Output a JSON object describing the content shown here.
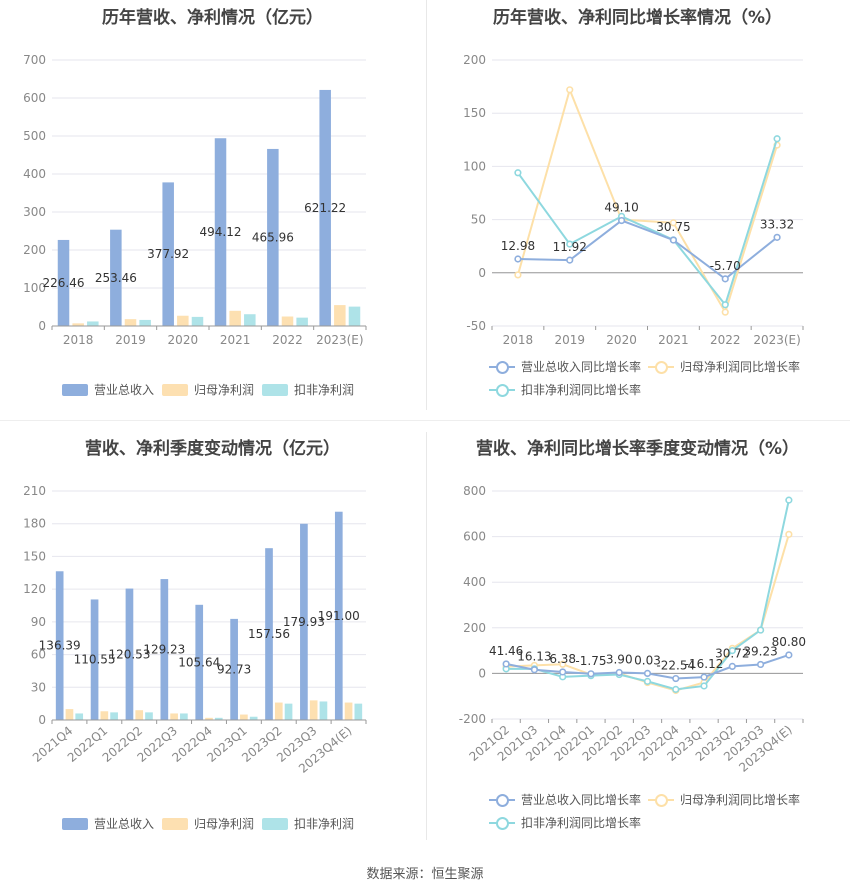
{
  "source": "数据来源：恒生聚源",
  "chart_data": [
    {
      "id": "annual-bar",
      "type": "bar",
      "title": "历年营收、净利情况（亿元）",
      "categories": [
        "2018",
        "2019",
        "2020",
        "2021",
        "2022",
        "2023(E)"
      ],
      "ylim": [
        0,
        700
      ],
      "yticks": [
        0,
        100,
        200,
        300,
        400,
        500,
        600,
        700
      ],
      "grid": true,
      "legend_position": "bottom",
      "colors": [
        "#8eaedd",
        "#fde0b1",
        "#aee3e8"
      ],
      "series": [
        {
          "name": "营业总收入",
          "values": [
            226.46,
            253.46,
            377.92,
            494.12,
            465.96,
            621.22
          ],
          "labels": [
            "226.46",
            "253.46",
            "377.92",
            "494.12",
            "465.96",
            "621.22"
          ]
        },
        {
          "name": "归母净利润",
          "values": [
            7,
            18,
            27,
            40,
            25,
            55
          ]
        },
        {
          "name": "扣非净利润",
          "values": [
            12,
            16,
            24,
            31,
            22,
            51
          ]
        }
      ]
    },
    {
      "id": "annual-line",
      "type": "line",
      "title": "历年营收、净利同比增长率情况（%）",
      "categories": [
        "2018",
        "2019",
        "2020",
        "2021",
        "2022",
        "2023(E)"
      ],
      "ylim": [
        -50,
        200
      ],
      "yticks": [
        -50,
        0,
        50,
        100,
        150,
        200
      ],
      "grid": true,
      "legend_position": "bottom",
      "colors": [
        "#8eaedd",
        "#fde0a8",
        "#8ed8df"
      ],
      "series": [
        {
          "name": "营业总收入同比增长率",
          "values": [
            12.98,
            11.92,
            49.1,
            30.75,
            -5.7,
            33.32
          ],
          "labels": [
            "12.98",
            "11.92",
            "49.10",
            "30.75",
            "-5.70",
            "33.32"
          ]
        },
        {
          "name": "归母净利润同比增长率",
          "values": [
            -2,
            172,
            50,
            47,
            -37,
            120
          ]
        },
        {
          "name": "扣非净利润同比增长率",
          "values": [
            94,
            27,
            53,
            31,
            -30,
            126
          ]
        }
      ]
    },
    {
      "id": "quarter-bar",
      "type": "bar",
      "title": "营收、净利季度变动情况（亿元）",
      "categories": [
        "2021Q4",
        "2022Q1",
        "2022Q2",
        "2022Q3",
        "2022Q4",
        "2023Q1",
        "2023Q2",
        "2023Q3",
        "2023Q4(E)"
      ],
      "ylim": [
        0,
        210
      ],
      "yticks": [
        0,
        30,
        60,
        90,
        120,
        150,
        180,
        210
      ],
      "grid": true,
      "legend_position": "bottom",
      "colors": [
        "#8eaedd",
        "#fde0b1",
        "#aee3e8"
      ],
      "series": [
        {
          "name": "营业总收入",
          "values": [
            136.39,
            110.55,
            120.53,
            129.23,
            105.64,
            92.73,
            157.56,
            179.93,
            191.0
          ],
          "labels": [
            "136.39",
            "110.55",
            "120.53",
            "129.23",
            "105.64",
            "92.73",
            "157.56",
            "179.93",
            "191.00"
          ]
        },
        {
          "name": "归母净利润",
          "values": [
            10,
            8,
            9,
            6,
            2,
            5,
            16,
            18,
            16
          ]
        },
        {
          "name": "扣非净利润",
          "values": [
            6,
            7,
            7,
            6,
            2,
            3,
            15,
            17,
            15
          ]
        }
      ]
    },
    {
      "id": "quarter-line",
      "type": "line",
      "title": "营收、净利同比增长率季度变动情况（%）",
      "categories": [
        "2021Q2",
        "2021Q3",
        "2021Q4",
        "2022Q1",
        "2022Q2",
        "2022Q3",
        "2022Q4",
        "2023Q1",
        "2023Q2",
        "2023Q3",
        "2023Q4(E)"
      ],
      "ylim": [
        -200,
        800
      ],
      "yticks": [
        -200,
        0,
        200,
        400,
        600,
        800
      ],
      "grid": true,
      "legend_position": "bottom",
      "colors": [
        "#8eaedd",
        "#fde0a8",
        "#8ed8df"
      ],
      "series": [
        {
          "name": "营业总收入同比增长率",
          "values": [
            41.46,
            16.13,
            6.38,
            -1.75,
            3.9,
            0.03,
            -22.54,
            -16.12,
            30.72,
            39.23,
            80.8
          ],
          "labels": [
            "41.46",
            "16.13",
            "6.38",
            "-1.75",
            "3.90",
            "0.03",
            "-22.54",
            "-16.12",
            "30.72",
            "39.23",
            "80.80"
          ]
        },
        {
          "name": "归母净利润同比增长率",
          "values": [
            30,
            35,
            40,
            -5,
            0,
            -40,
            -75,
            -40,
            110,
            190,
            610
          ]
        },
        {
          "name": "扣非净利润同比增长率",
          "values": [
            20,
            20,
            -15,
            -10,
            -5,
            -35,
            -70,
            -55,
            100,
            190,
            760
          ]
        }
      ]
    }
  ]
}
